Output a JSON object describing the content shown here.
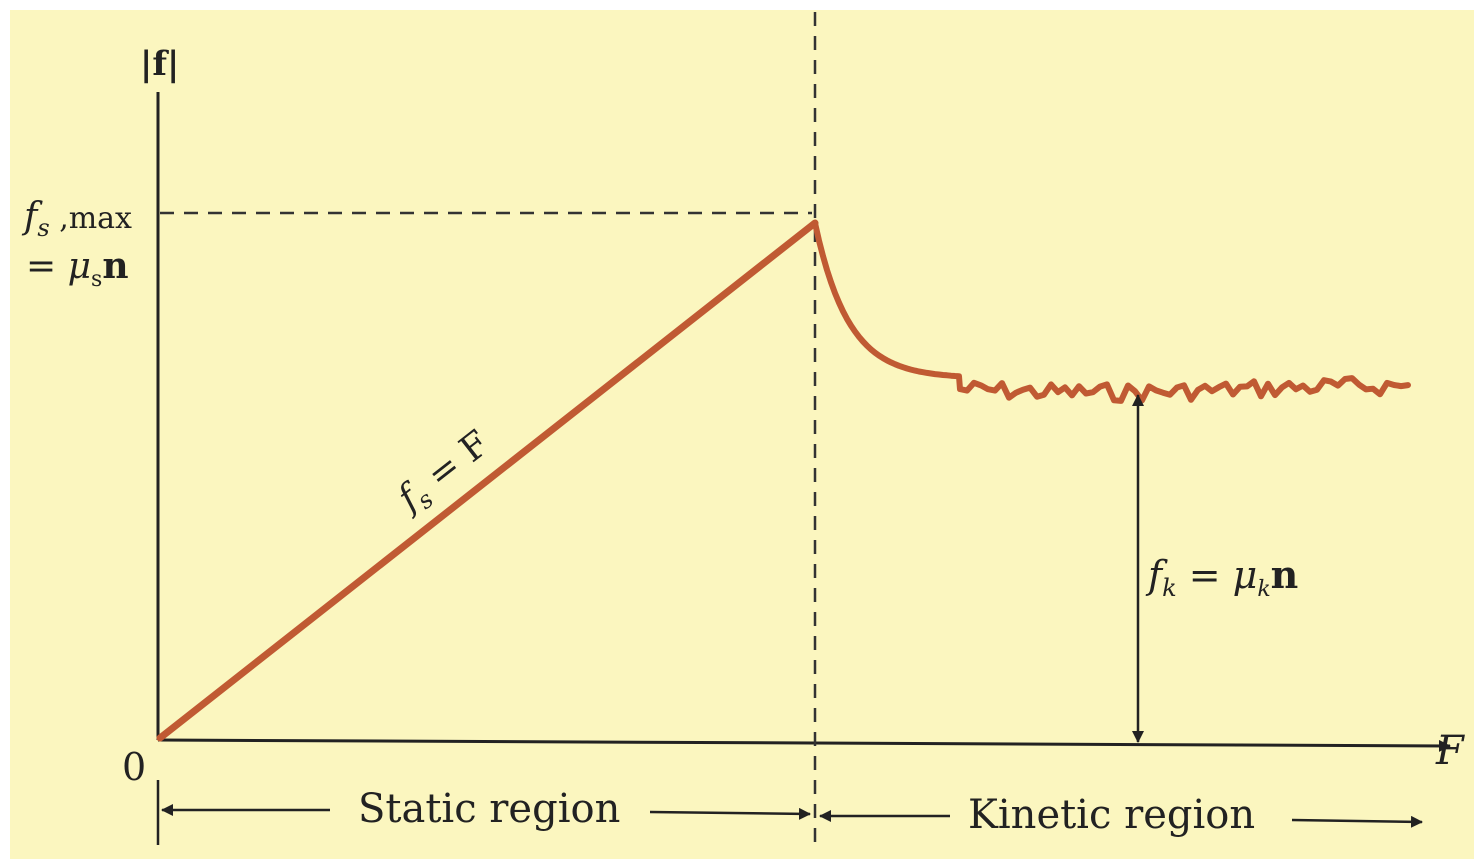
{
  "colors": {
    "background": "#fbf6bf",
    "curve": "#c05a33",
    "ink": "#222222"
  },
  "axes": {
    "y_label": "|f|",
    "x_label": "F",
    "origin_label": "0"
  },
  "fs_max_label": {
    "line1_f": "f",
    "line1_sub": "s",
    "line1_rest": " ,max",
    "line2_eq": "= ",
    "line2_mu": "μ",
    "line2_sub": "s",
    "line2_n": "n"
  },
  "static_curve_label": {
    "f": "f",
    "sub": "s",
    "rest": " = F"
  },
  "kinetic_level_label": {
    "f": "f",
    "sub": "k",
    "eq": " = ",
    "mu": "μ",
    "mu_sub": "k",
    "n": "n"
  },
  "regions": {
    "static": "Static region",
    "kinetic": "Kinetic region"
  },
  "friction_curve": {
    "fs_max": 1.0,
    "fk": 0.69,
    "threshold_F": 1.0
  }
}
